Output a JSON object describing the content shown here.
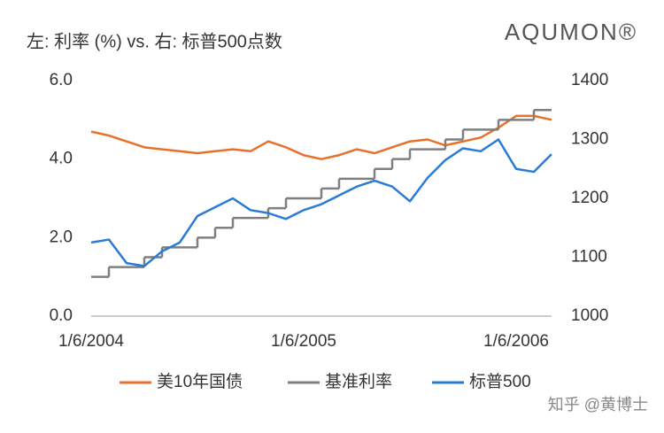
{
  "chart_data": {
    "type": "line",
    "title": "左: 利率 (%) vs. 右: 标普500点数",
    "brand": "AQUMON®",
    "watermark": "知乎 @黄博士",
    "categories": [
      "1/6/2004",
      null,
      null,
      null,
      null,
      null,
      null,
      null,
      null,
      null,
      null,
      null,
      "1/6/2005",
      null,
      null,
      null,
      null,
      null,
      null,
      null,
      null,
      null,
      null,
      null,
      "1/6/2006",
      null,
      null
    ],
    "ylim": [
      0,
      6
    ],
    "yticks": [
      {
        "value": 0,
        "label": "0.0"
      },
      {
        "value": 2,
        "label": "2.0"
      },
      {
        "value": 4,
        "label": "4.0"
      },
      {
        "value": 6,
        "label": "6.0"
      }
    ],
    "y2lim": [
      1000,
      1400
    ],
    "y2ticks": [
      1000,
      1100,
      1200,
      1300,
      1400
    ],
    "legend": "bottom",
    "series": [
      {
        "name": "美10年国债",
        "color": "#e8702a",
        "values": [
          4.7,
          4.6,
          4.45,
          4.3,
          4.25,
          4.2,
          4.15,
          4.2,
          4.25,
          4.2,
          4.45,
          4.3,
          4.1,
          4.0,
          4.1,
          4.25,
          4.15,
          4.3,
          4.45,
          4.5,
          4.35,
          4.45,
          4.55,
          4.8,
          5.1,
          5.1,
          5.0
        ]
      },
      {
        "name": "基准利率",
        "color": "#7f7f7f",
        "step": true,
        "values": [
          1.0,
          1.25,
          1.25,
          1.5,
          1.75,
          1.75,
          2.0,
          2.25,
          2.5,
          2.5,
          2.75,
          3.0,
          3.0,
          3.25,
          3.5,
          3.5,
          3.75,
          4.0,
          4.25,
          4.25,
          4.5,
          4.75,
          4.75,
          5.0,
          5.0,
          5.25,
          5.25
        ]
      },
      {
        "name": "标普500",
        "color": "#2a7bd5",
        "axis": "y2",
        "values": [
          1125,
          1130,
          1090,
          1085,
          1110,
          1125,
          1170,
          1185,
          1200,
          1180,
          1175,
          1165,
          1180,
          1190,
          1205,
          1220,
          1230,
          1220,
          1195,
          1235,
          1265,
          1285,
          1280,
          1300,
          1250,
          1245,
          1275
        ]
      }
    ]
  }
}
